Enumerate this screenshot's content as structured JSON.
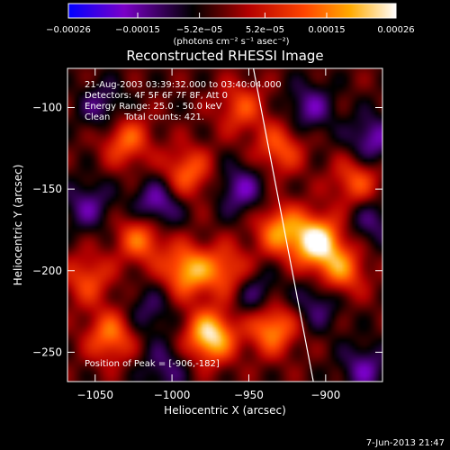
{
  "chart_data": {
    "type": "heatmap",
    "title": "Reconstructed RHESSI Image",
    "xlabel": "Heliocentric X (arcsec)",
    "ylabel": "Heliocentric Y (arcsec)",
    "xlim": [
      -1068,
      -863
    ],
    "ylim": [
      -268,
      -76
    ],
    "x_ticks": [
      -1050,
      -1000,
      -950,
      -900
    ],
    "y_ticks": [
      -100,
      -150,
      -200,
      -250
    ],
    "colorbar": {
      "range": [
        -0.00026,
        0.00026
      ],
      "tick_values": [
        -0.00026,
        -0.00015,
        -5.2e-05,
        5.2e-05,
        0.00015,
        0.00026
      ],
      "tick_labels": [
        "-0.00026",
        "-0.00015",
        "-5.2e-05",
        "5.2e-05",
        "0.00015",
        "0.00026"
      ],
      "units_label": "(photons cm⁻² s⁻¹ asec⁻²)",
      "colormap": [
        "#0000ff",
        "#7b00c8",
        "#000000",
        "#b40000",
        "#ff4400",
        "#ffaa00",
        "#ffffff"
      ]
    },
    "annotations": [
      "21-Aug-2003 03:39:32.000 to 03:40:04.000",
      "Detectors: 4F 5F 6F 7F 8F, Att 0",
      "Energy Range: 25.0 - 50.0 keV",
      "Clean     Total counts: 421."
    ],
    "peak_label": "Position of Peak = [-906,-182]",
    "peak": [
      -906,
      -182
    ],
    "hotspots": [
      {
        "x": -1040,
        "y": -240,
        "v": 0.6
      },
      {
        "x": -975,
        "y": -240,
        "v": 0.95
      },
      {
        "x": -935,
        "y": -235,
        "v": 0.7
      },
      {
        "x": -990,
        "y": -200,
        "v": 0.75
      },
      {
        "x": -1020,
        "y": -180,
        "v": 0.6
      },
      {
        "x": -965,
        "y": -200,
        "v": 0.5
      },
      {
        "x": -930,
        "y": -175,
        "v": 0.65
      },
      {
        "x": -906,
        "y": -182,
        "v": 1.0
      },
      {
        "x": -890,
        "y": -200,
        "v": 0.6
      },
      {
        "x": -1030,
        "y": -120,
        "v": 0.55
      },
      {
        "x": -990,
        "y": -140,
        "v": 0.55
      },
      {
        "x": -930,
        "y": -125,
        "v": 0.5
      },
      {
        "x": -880,
        "y": -145,
        "v": 0.5
      },
      {
        "x": -1055,
        "y": -205,
        "v": 0.45
      },
      {
        "x": -955,
        "y": -100,
        "v": 0.45
      }
    ],
    "coldspots": [
      {
        "x": -1010,
        "y": -160,
        "v": 0.9
      },
      {
        "x": -1045,
        "y": -100,
        "v": 0.6
      },
      {
        "x": -910,
        "y": -100,
        "v": 0.7
      },
      {
        "x": -870,
        "y": -120,
        "v": 0.8
      },
      {
        "x": -955,
        "y": -150,
        "v": 0.75
      },
      {
        "x": -1055,
        "y": -160,
        "v": 0.65
      },
      {
        "x": -945,
        "y": -215,
        "v": 0.6
      },
      {
        "x": -1005,
        "y": -260,
        "v": 0.55
      },
      {
        "x": -875,
        "y": -260,
        "v": 0.7
      },
      {
        "x": -1015,
        "y": -225,
        "v": 0.5
      },
      {
        "x": -905,
        "y": -220,
        "v": 0.6
      },
      {
        "x": -870,
        "y": -170,
        "v": 0.55
      }
    ],
    "limb_line": [
      [
        -947,
        -76
      ],
      [
        -908,
        -268
      ]
    ]
  },
  "footer_timestamp": "7-Jun-2013 21:47"
}
